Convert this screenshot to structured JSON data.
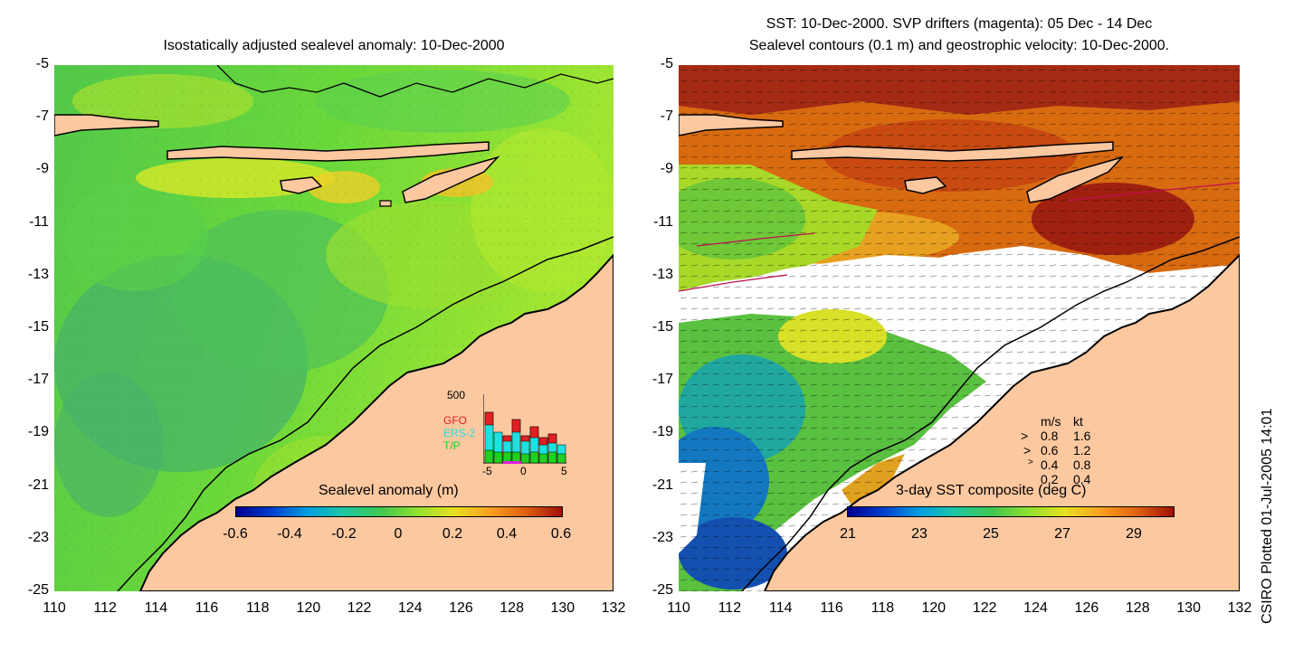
{
  "left_panel": {
    "title": "Isostatically adjusted sealevel anomaly: 10-Dec-2000",
    "colorbar": {
      "title": "Sealevel anomaly (m)",
      "tick_labels": [
        "-0.6",
        "-0.4",
        "-0.2",
        "0",
        "0.2",
        "0.4",
        "0.6"
      ]
    },
    "histogram": {
      "ymax_label": "500",
      "satellites": [
        {
          "name": "GFO",
          "color": "#e02020"
        },
        {
          "name": "ERS-2",
          "color": "#20e0e0"
        },
        {
          "name": "T/P",
          "color": "#20d020"
        }
      ],
      "x_tick_labels": [
        "-5",
        "0",
        "5"
      ]
    }
  },
  "right_panel": {
    "title_line1": "SST: 10-Dec-2000. SVP drifters (magenta): 05 Dec - 14 Dec",
    "title_line2": "Sealevel contours (0.1 m) and geostrophic velocity: 10-Dec-2000.",
    "colorbar": {
      "title": "3-day SST composite (deg C)",
      "tick_labels": [
        "21",
        "23",
        "25",
        "27",
        "29"
      ]
    },
    "velocity_legend": {
      "header_ms": "m/s",
      "header_kt": "kt",
      "rows": [
        {
          "ms": "0.8",
          "kt": "1.6"
        },
        {
          "ms": "0.6",
          "kt": "1.2"
        },
        {
          "ms": "0.4",
          "kt": "0.8"
        },
        {
          "ms": "0.2",
          "kt": "0.4"
        }
      ]
    }
  },
  "axes": {
    "lat_labels": [
      "-5",
      "-7",
      "-9",
      "-11",
      "-13",
      "-15",
      "-17",
      "-19",
      "-21",
      "-23",
      "-25"
    ],
    "lon_labels": [
      "110",
      "112",
      "114",
      "116",
      "118",
      "120",
      "122",
      "124",
      "126",
      "128",
      "130",
      "132"
    ]
  },
  "credit": "CSIRO Plotted 01-Jul-2005 14:01",
  "colors": {
    "land": "#fcc8a0",
    "sla_base": "#5fd23c",
    "sst_warm": "#c83c10",
    "coast": "#000000"
  }
}
